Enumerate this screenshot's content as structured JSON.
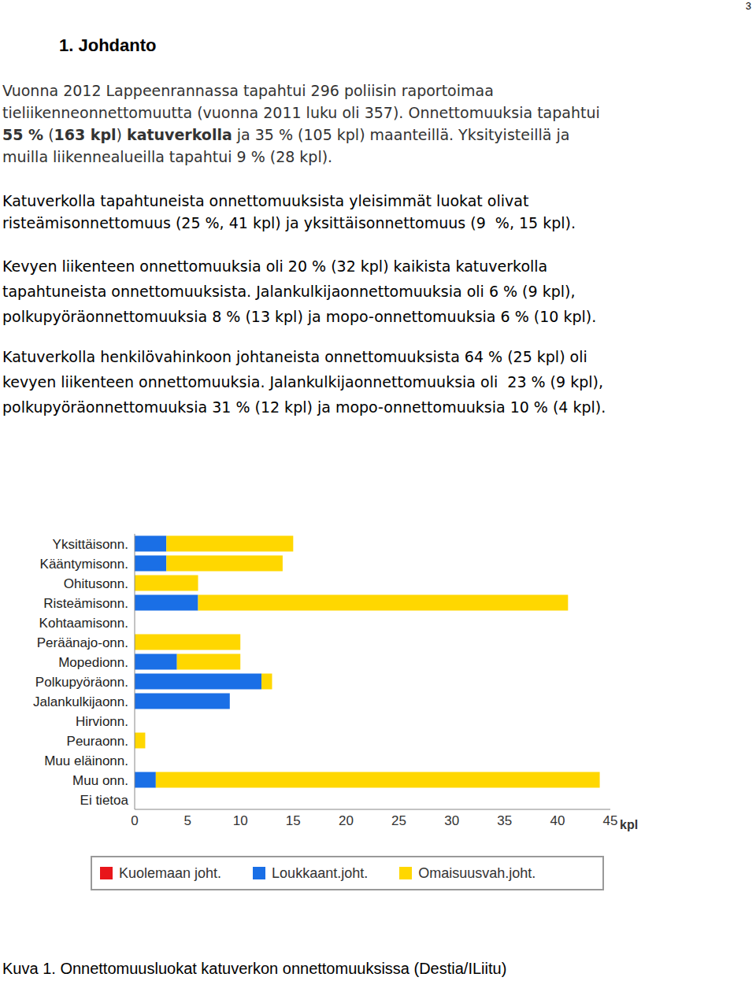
{
  "page_number": "3",
  "heading": "1. Johdanto",
  "paragraphs": [
    [
      "Vuonna 2012 Lappeenrannassa tapahtui 296 poliisin raportoimaa",
      "tieliikenneonnettomuutta (vuonna 2011 luku oli 357). Onnettomuuksia tapahtui",
      [
        {
          "text": "55 %",
          "bold": true
        },
        {
          "text": " (",
          "bold": false
        },
        {
          "text": "163 kpl",
          "bold": true
        },
        {
          "text": ") ",
          "bold": false
        },
        {
          "text": "katuverkolla",
          "bold": true
        },
        {
          "text": " ja 35 % (105 kpl) maanteillä. Yksityisteillä ja",
          "bold": false
        }
      ],
      "muilla liikennealueilla tapahtui 9 % (28 kpl)."
    ],
    [
      "Katuverkolla tapahtuneista onnettomuuksista yleisimmät luokat olivat",
      "risteämisonnettomuus (25 %, 41 kpl) ja yksittäisonnettomuus (9  %, 15 kpl)."
    ],
    [
      "Kevyen liikenteen onnettomuuksia oli 20 % (32 kpl) kaikista katuverkolla",
      "tapahtuneista onnettomuuksista. Jalankulkijaonnettomuuksia oli 6 % (9 kpl),",
      "polkupyöräonnettomuuksia 8 % (13 kpl) ja mopo-onnettomuuksia 6 % (10 kpl)."
    ],
    [
      "Katuverkolla henkilövahinkoon johtaneista onnettomuuksista 64 % (25 kpl) oli",
      "kevyen liikenteen onnettomuuksia. Jalankulkijaonnettomuuksia oli  23 % (9 kpl),",
      "polkupyöräonnettomuuksia 31 % (12 kpl) ja mopo-onnettomuuksia 10 % (4 kpl)."
    ]
  ],
  "chart_data": {
    "type": "bar",
    "orientation": "horizontal",
    "stacked": true,
    "categories": [
      "Yksittäisonn.",
      "Kääntymisonn.",
      "Ohitusonn.",
      "Risteämisonn.",
      "Kohtaamisonn.",
      "Peräänajo-onn.",
      "Mopedionn.",
      "Polkupyöräonn.",
      "Jalankulkijaonn.",
      "Hirvionn.",
      "Peuraonn.",
      "Muu eläinonn.",
      "Muu onn.",
      "Ei tietoa"
    ],
    "series": [
      {
        "name": "Kuolemaan joht.",
        "color": "#e8161b",
        "values": [
          0,
          0,
          0,
          0,
          0,
          0,
          0,
          0,
          0,
          0,
          0,
          0,
          0,
          0
        ]
      },
      {
        "name": "Loukkaant.joht.",
        "color": "#1a6fe6",
        "values": [
          3,
          3,
          0,
          6,
          0,
          0,
          4,
          12,
          9,
          0,
          0,
          0,
          2,
          0
        ]
      },
      {
        "name": "Omaisuusvah.joht.",
        "color": "#ffd700",
        "values": [
          12,
          11,
          6,
          35,
          0,
          10,
          6,
          1,
          0,
          0,
          1,
          0,
          42,
          0
        ]
      }
    ],
    "xlim": [
      0,
      45
    ],
    "xticks": [
      0,
      5,
      10,
      15,
      20,
      25,
      30,
      35,
      40,
      45
    ],
    "xlabel": "kpl",
    "grid": false,
    "legend": "bottom"
  },
  "caption": "Kuva 1. Onnettomuusluokat katuverkon onnettomuuksissa (Destia/ILiitu)"
}
